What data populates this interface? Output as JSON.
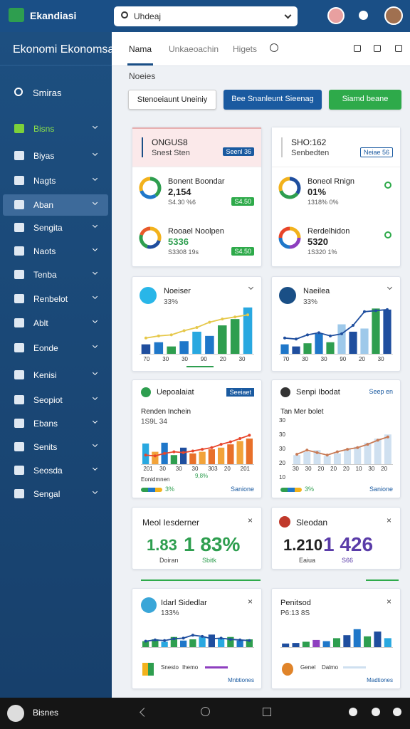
{
  "topbar": {
    "brand": "Ekandiasi",
    "search": "Uhdeaj"
  },
  "sidebar": {
    "title": "Ekonomi Ekonomsa",
    "section": "Smiras",
    "selected_index": 3,
    "items": [
      "Bisns",
      "Biyas",
      "Nagts",
      "Aban",
      "Sengita",
      "Naots",
      "Tenba",
      "Renbelot",
      "Ablt",
      "Eonde",
      "Kenisi",
      "Seopiot",
      "Ebans",
      "Senits",
      "Seosda",
      "Sengal"
    ]
  },
  "tabs": [
    "Nama",
    "Unkaeoachin",
    "Higets"
  ],
  "breadcrumb": "Noeies",
  "buttons": [
    "Stenoeiaunt Uneiniy",
    "Bee Snanleunt Sieenag",
    "Siamd beane"
  ],
  "summary_cards": [
    {
      "title": "ONGUS8",
      "subtitle": "Snest Sten",
      "tag": "Seenl 36",
      "rows": [
        {
          "title": "Bonent Boondar",
          "value": "2,154",
          "sub": "S4.30 %6",
          "tag": "S4.50",
          "donut": [
            40,
            30,
            30
          ],
          "colors": [
            "#2e9e4f",
            "#1f77c9",
            "#f2b21c"
          ]
        },
        {
          "title": "Rooael Noolpen",
          "value": "5336",
          "sub": "S3308 19s",
          "tag": "S4.50",
          "donut": [
            30,
            25,
            25,
            20
          ],
          "colors": [
            "#f2b21c",
            "#1f4e9e",
            "#2e9e4f",
            "#e85a2a"
          ]
        }
      ]
    },
    {
      "title": "SHO:162",
      "subtitle": "Senbedten",
      "tag": "Neiae 56",
      "rows": [
        {
          "title": "Boneol Rnign",
          "value": "01%",
          "sub": "1318% 0%",
          "donut": [
            35,
            35,
            30
          ],
          "colors": [
            "#1f4e9e",
            "#2e9e4f",
            "#f2b21c"
          ]
        },
        {
          "title": "Rerdelhidon",
          "value": "5320",
          "sub": "1S320 1%",
          "donut": [
            25,
            25,
            25,
            25
          ],
          "colors": [
            "#f2b21c",
            "#8e3fbf",
            "#1f77c9",
            "#e8452a"
          ]
        }
      ]
    }
  ],
  "bar_cards": [
    {
      "title": "Noeiser",
      "value": "33%",
      "ylim": [
        0,
        100
      ],
      "bars": [
        18,
        22,
        14,
        24,
        42,
        34,
        54,
        66,
        88
      ],
      "colors": [
        "#1f4e9e",
        "#1f77c9",
        "#2e9e4f",
        "#1f77c9",
        "#29a8e0",
        "#1f77c9",
        "#2e9e4f",
        "#2e9e4f",
        "#29a8e0"
      ],
      "line": [
        30,
        34,
        36,
        44,
        50,
        60,
        66,
        70,
        74
      ],
      "line_color": "#e6c84a",
      "x_labels": [
        "70",
        "30",
        "30",
        "90",
        "20",
        "30"
      ]
    },
    {
      "title": "Naeilea",
      "value": "33%",
      "ylim": [
        0,
        100
      ],
      "bars": [
        18,
        14,
        20,
        38,
        22,
        56,
        42,
        48,
        86,
        84
      ],
      "colors": [
        "#1f77c9",
        "#1f4e9e",
        "#2e9e4f",
        "#1f77c9",
        "#2e9e4f",
        "#9ec9ea",
        "#1f4e9e",
        "#9ec9ea",
        "#2e9e4f",
        "#1f4e9e"
      ],
      "line": [
        30,
        28,
        36,
        40,
        34,
        38,
        54,
        80,
        82,
        84
      ],
      "line_color": "#1f4e9e",
      "x_labels": [
        "70",
        "30",
        "30",
        "90",
        "20",
        "30"
      ]
    }
  ],
  "combo_cards": [
    {
      "title": "Uepoalaiat",
      "link": "Seeiaet",
      "sub_title": "Renden Inchein",
      "sub_value": "1S9L 34",
      "ylim": [
        0,
        100
      ],
      "bars": [
        50,
        30,
        52,
        22,
        40,
        26,
        30,
        36,
        40,
        48,
        56,
        62
      ],
      "colors": [
        "#29a8e0",
        "#f2a33a",
        "#1f77c9",
        "#2e9e4f",
        "#1f4e9e",
        "#e8702a",
        "#f2a33a",
        "#e8702a",
        "#f2a33a",
        "#e8702a",
        "#f2a33a",
        "#e8702a"
      ],
      "line": [
        22,
        20,
        26,
        30,
        28,
        32,
        36,
        40,
        48,
        54,
        62,
        70
      ],
      "line_color": "#e8452a",
      "x_labels": [
        "201",
        "30",
        "30",
        "30",
        "303",
        "20",
        "201"
      ],
      "x_note": "9,8%",
      "footer_left": "Eonidmnen",
      "footer_stat": "3%",
      "footer_link": "Sanione"
    },
    {
      "title": "Senpi Ibodat",
      "link": "Seep en",
      "sub_title": "Tan Mer bolet",
      "sub_value": "",
      "ylim": [
        0,
        100
      ],
      "bars": [
        22,
        30,
        34,
        20,
        26,
        36,
        42,
        52,
        62,
        72
      ],
      "colors": [
        "#cfe0f0",
        "#cfe0f0",
        "#cfe0f0",
        "#cfe0f0",
        "#cfe0f0",
        "#cfe0f0",
        "#cfe0f0",
        "#cfe0f0",
        "#cfe0f0",
        "#cfe0f0"
      ],
      "line": [
        24,
        34,
        28,
        22,
        30,
        36,
        40,
        48,
        58,
        66
      ],
      "line_color": "#c87a55",
      "y_labels": [
        "30",
        "30",
        "30",
        "20",
        "10"
      ],
      "x_labels": [
        "30",
        "30",
        "20",
        "20",
        "20",
        "10",
        "30",
        "20"
      ],
      "x_note": "",
      "footer_left": "",
      "footer_stat": "3%",
      "footer_link": "Sanione"
    }
  ],
  "kpi_cards": [
    {
      "title": "Meol Iesderner",
      "left": "1.83",
      "right": "1 83%",
      "left_sub": "Doiran",
      "right_sub": "Sbitk",
      "color": "#2e9e4f"
    },
    {
      "title": "Sleodan",
      "left": "1.210",
      "right": "1 426",
      "left_sub": "Eaiua",
      "right_sub": "S66",
      "color": "#5a3ca8"
    }
  ],
  "mini_cards": [
    {
      "title": "Idarl Sidedlar",
      "value": "133%",
      "ylim": [
        0,
        100
      ],
      "bars": [
        20,
        26,
        18,
        34,
        22,
        26,
        34,
        42,
        28,
        34,
        22,
        26
      ],
      "colors": [
        "#2e9e4f",
        "#2e9e4f",
        "#29a8e0",
        "#2e9e4f",
        "#1f77c9",
        "#2e9e4f",
        "#29a8e0",
        "#1f4e9e",
        "#29a8e0",
        "#2e9e4f",
        "#1f77c9",
        "#2e9e4f"
      ],
      "line": [
        20,
        24,
        22,
        28,
        30,
        40,
        36,
        28,
        30,
        26,
        24,
        22
      ],
      "line_color": "#1f4e9e",
      "footer_a": "Snesto",
      "footer_b": "Ihemo",
      "link": "Mnbtiones"
    },
    {
      "title": "Penitsod",
      "value": "P6:13 8S",
      "ylim": [
        0,
        100
      ],
      "bars": [
        12,
        14,
        18,
        24,
        20,
        30,
        40,
        60,
        36,
        52,
        30
      ],
      "colors": [
        "#1f4e9e",
        "#1f4e9e",
        "#2e9e4f",
        "#8e3fbf",
        "#1f77c9",
        "#2e9e4f",
        "#1f4e9e",
        "#1f77c9",
        "#2e9e4f",
        "#1f4e9e",
        "#29a8e0"
      ],
      "line": [],
      "line_color": "#1f4e9e",
      "footer_a": "Genel",
      "footer_b": "Dalmo",
      "link": "Madtiones"
    }
  ],
  "bottom_bar": {
    "label": "Bisnes"
  }
}
